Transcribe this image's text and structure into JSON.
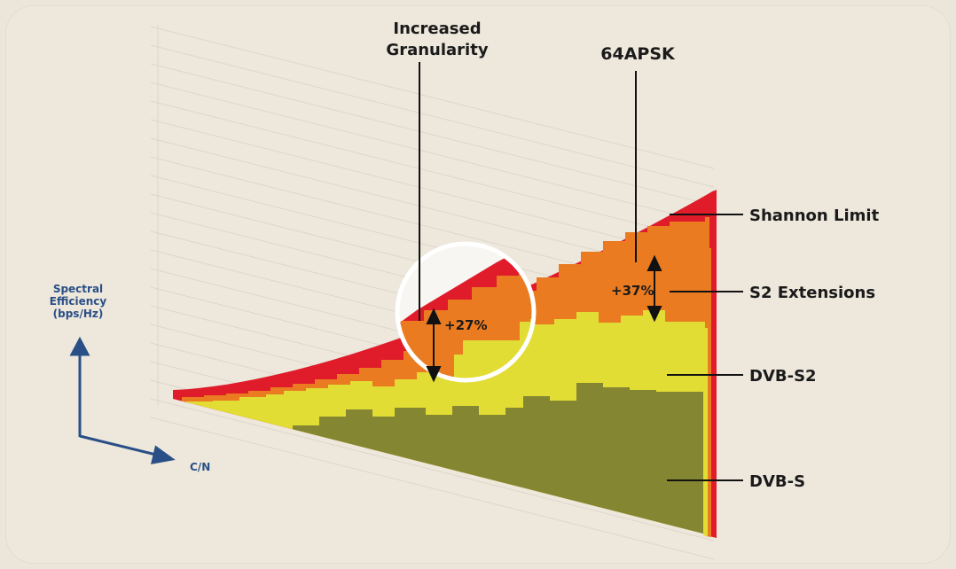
{
  "chart_data": {
    "type": "area",
    "xlabel": "C/N",
    "ylabel_lines": [
      "Spectral",
      "Efficiency",
      "(bps/Hz)"
    ],
    "series": [
      {
        "name": "Shannon Limit",
        "color": "#e01b2a"
      },
      {
        "name": "S2 Extensions",
        "color": "#ea7b21"
      },
      {
        "name": "DVB-S2",
        "color": "#e2dd34"
      },
      {
        "name": "DVB-S",
        "color": "#858631"
      }
    ],
    "annotations": {
      "granularity_lines": [
        "Increased",
        "Granularity"
      ],
      "apsk": "64APSK",
      "gain_circle": "+27%",
      "gain_right": "+37%"
    }
  }
}
